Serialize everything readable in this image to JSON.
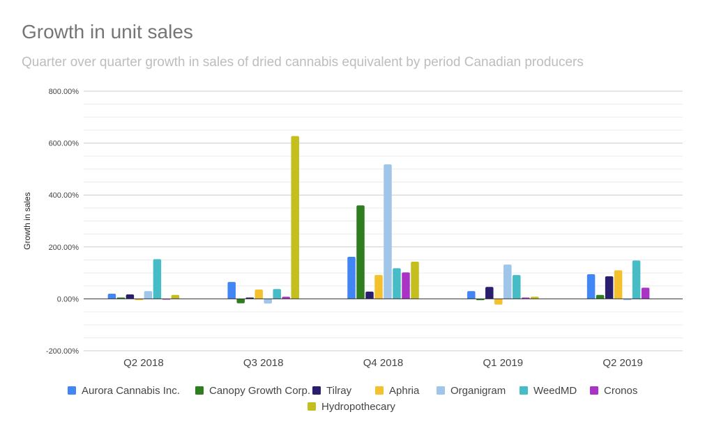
{
  "chart_data": {
    "type": "bar",
    "title": "Growth in unit sales",
    "subtitle": "Quarter over quarter growth in sales of dried cannabis equivalent by period Canadian producers",
    "xlabel": "",
    "ylabel": "Growth in sales",
    "ylim": [
      -200,
      800
    ],
    "yticks": [
      -200,
      0,
      200,
      400,
      600,
      800
    ],
    "ytick_labels": [
      "-200.00%",
      "0.00%",
      "200.00%",
      "400.00%",
      "600.00%",
      "800.00%"
    ],
    "grid": true,
    "legend_position": "bottom",
    "categories": [
      "Q2 2018",
      "Q3 2018",
      "Q4 2018",
      "Q1 2019",
      "Q2 2019"
    ],
    "series": [
      {
        "name": "Aurora Cannabis Inc.",
        "color": "#4285f4",
        "values": [
          20,
          65,
          162,
          30,
          95
        ]
      },
      {
        "name": "Canopy Growth Corp.",
        "color": "#2e7d1f",
        "values": [
          5,
          -17,
          360,
          -5,
          15
        ]
      },
      {
        "name": "Tilray",
        "color": "#2a1f6e",
        "values": [
          17,
          5,
          28,
          46,
          87
        ]
      },
      {
        "name": "Aphria",
        "color": "#f4c12d",
        "values": [
          -5,
          36,
          92,
          -22,
          110
        ]
      },
      {
        "name": "Organigram",
        "color": "#9fc5e8",
        "values": [
          30,
          -18,
          518,
          132,
          -5
        ]
      },
      {
        "name": "WeedMD",
        "color": "#46bdc6",
        "values": [
          153,
          38,
          118,
          92,
          148
        ]
      },
      {
        "name": "Cronos",
        "color": "#a833c4",
        "values": [
          -3,
          8,
          102,
          5,
          43
        ]
      },
      {
        "name": "Hydropothecary",
        "color": "#c4be1e",
        "values": [
          15,
          627,
          143,
          8,
          null
        ]
      }
    ]
  }
}
